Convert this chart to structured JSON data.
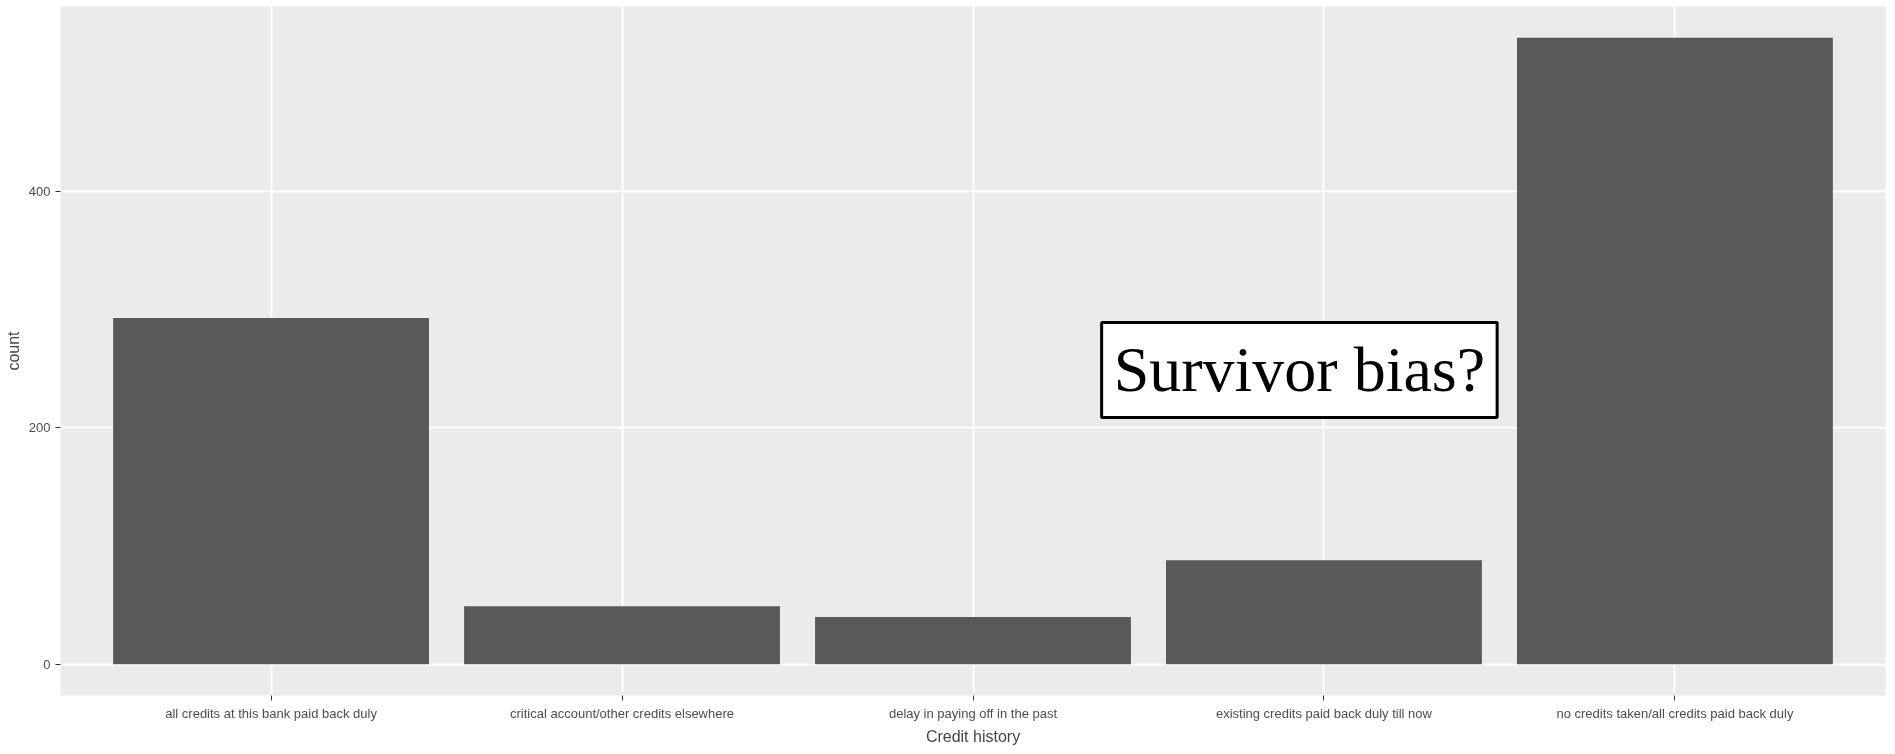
{
  "chart_data": {
    "type": "bar",
    "xlabel": "Credit history",
    "ylabel": "count",
    "categories": [
      "all credits at this bank paid back duly",
      "critical account/other credits elsewhere",
      "delay in paying off in the past",
      "existing credits paid back duly till now",
      "no credits taken/all credits paid back duly"
    ],
    "values": [
      293,
      49,
      40,
      88,
      530
    ],
    "color": "#595959",
    "ylim": [
      -26.5,
      556.5
    ],
    "yticks": [
      0,
      200,
      400
    ],
    "grid": true,
    "annotations": [
      "Survivor bias?"
    ]
  }
}
